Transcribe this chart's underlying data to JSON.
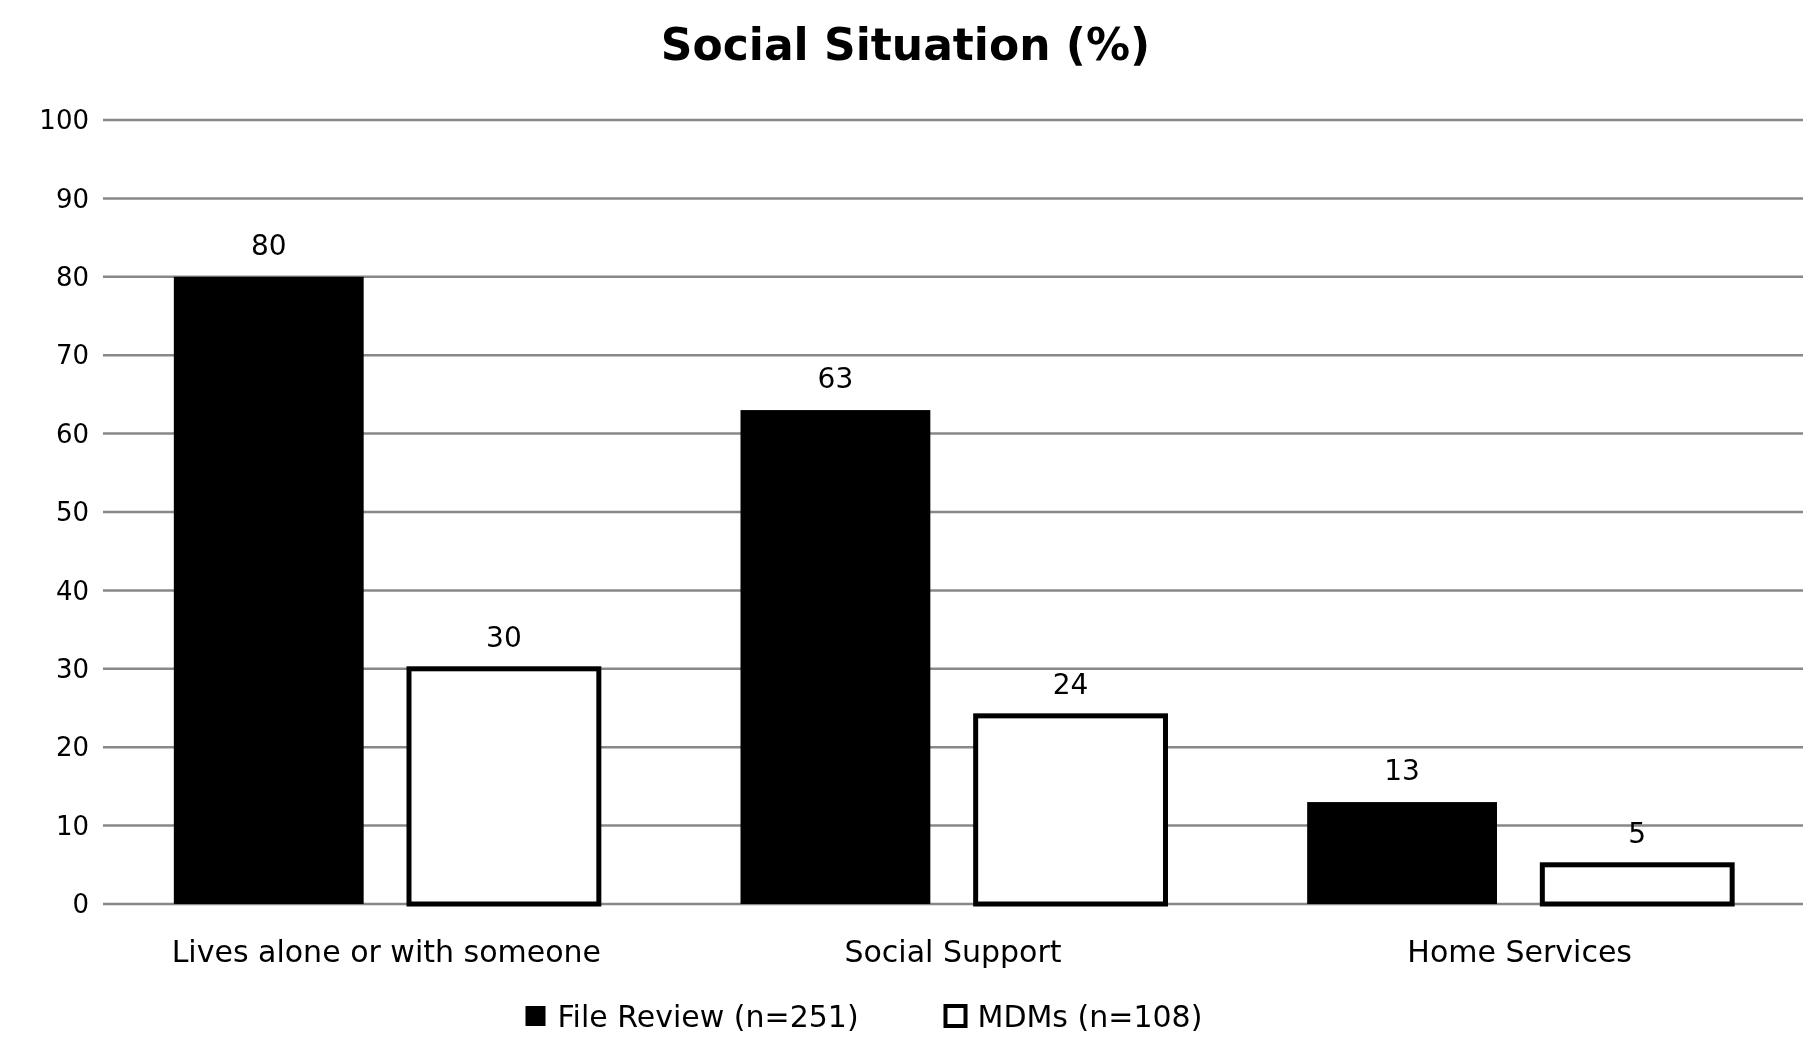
{
  "chart_data": {
    "type": "bar",
    "title": "Social Situation (%)",
    "categories": [
      "Lives alone or with someone",
      "Social Support",
      "Home Services"
    ],
    "series": [
      {
        "name": "File Review (n=251)",
        "color": "#000000",
        "values": [
          80,
          63,
          13
        ]
      },
      {
        "name": "MDMs (n=108)",
        "color": "#ffffff",
        "values": [
          30,
          24,
          5
        ]
      }
    ],
    "ylim": [
      0,
      100
    ],
    "yticks": [
      0,
      10,
      20,
      30,
      40,
      50,
      60,
      70,
      80,
      90,
      100
    ],
    "grid": "y",
    "legend": "bottom",
    "data_labels": true
  }
}
